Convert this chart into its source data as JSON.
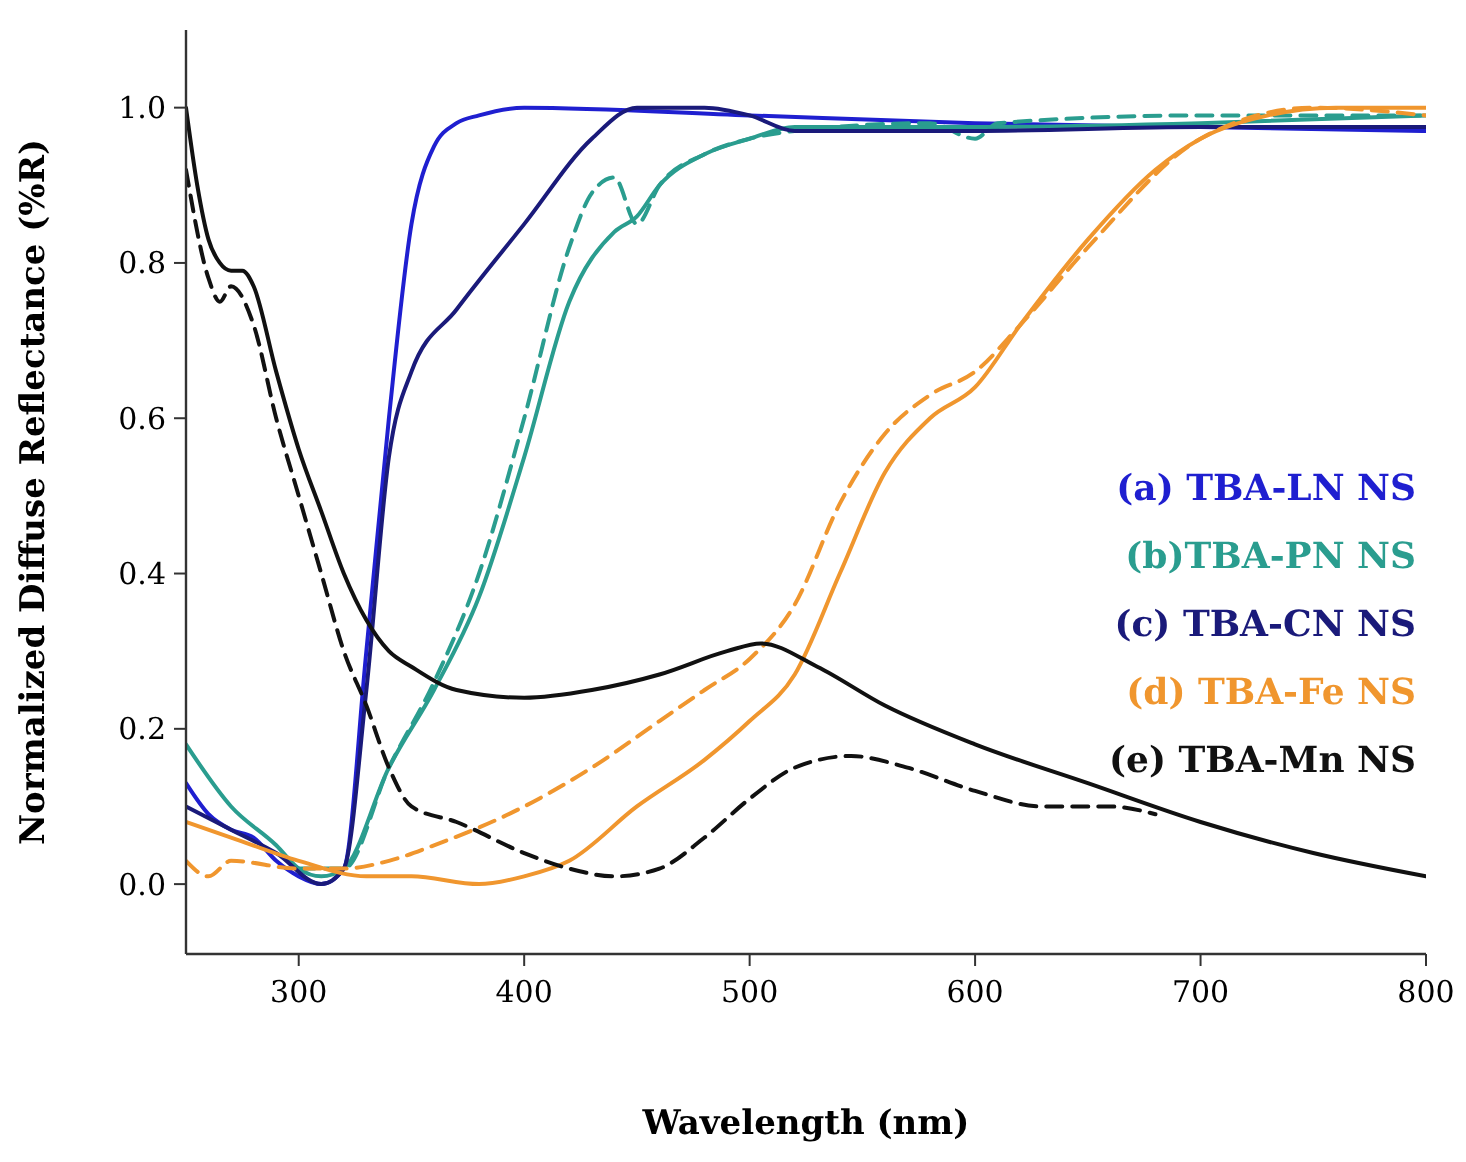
{
  "chart_data": {
    "type": "line",
    "xlabel": "Wavelength (nm)",
    "ylabel": "Normalized Diffuse Reflectance (%R)",
    "xlim": [
      250,
      800
    ],
    "ylim": [
      -0.09,
      1.1
    ],
    "xticks": [
      300,
      400,
      500,
      600,
      700,
      800
    ],
    "yticks": [
      {
        "value": 0,
        "label": "0.0"
      },
      0.2,
      0.4,
      0.6,
      0.8,
      {
        "value": 1,
        "label": "1.0"
      }
    ],
    "grid": false,
    "legend": "right",
    "marker": "none",
    "series": [
      {
        "name": "(a) TBA-LN NS",
        "color": "#1f1fd0",
        "line_style": "solid",
        "x": [
          250,
          260,
          270,
          280,
          290,
          300,
          310,
          320,
          330,
          340,
          350,
          360,
          370,
          380,
          400,
          500,
          600,
          700,
          800
        ],
        "values": [
          0.13,
          0.09,
          0.07,
          0.06,
          0.03,
          0.01,
          0.0,
          0.02,
          0.3,
          0.6,
          0.85,
          0.95,
          0.98,
          0.99,
          1.0,
          0.99,
          0.98,
          0.975,
          0.97
        ]
      },
      {
        "name": "(b)TBA-PN NS",
        "color": "#2a9d8f",
        "line_style": "solid",
        "x": [
          250,
          270,
          290,
          300,
          310,
          320,
          340,
          360,
          380,
          400,
          420,
          440,
          450,
          460,
          480,
          500,
          520,
          600,
          700,
          800
        ],
        "values": [
          0.18,
          0.1,
          0.05,
          0.02,
          0.01,
          0.02,
          0.15,
          0.25,
          0.37,
          0.55,
          0.75,
          0.84,
          0.86,
          0.9,
          0.94,
          0.96,
          0.975,
          0.975,
          0.98,
          0.99
        ]
      },
      {
        "color": "#2a9d8f",
        "line_style": "dashed",
        "x": [
          300,
          320,
          340,
          360,
          380,
          400,
          420,
          430,
          440,
          450,
          460,
          480,
          500,
          520,
          580,
          600,
          610,
          700,
          800
        ],
        "values": [
          0.02,
          0.02,
          0.15,
          0.26,
          0.4,
          0.6,
          0.82,
          0.89,
          0.91,
          0.85,
          0.9,
          0.94,
          0.96,
          0.97,
          0.98,
          0.96,
          0.98,
          0.99,
          0.99
        ]
      },
      {
        "name": "(c) TBA-CN NS",
        "color": "#1a1a7a",
        "line_style": "solid",
        "x": [
          250,
          270,
          290,
          310,
          320,
          330,
          340,
          350,
          370,
          400,
          430,
          450,
          480,
          500,
          520,
          600,
          700,
          800
        ],
        "values": [
          0.1,
          0.07,
          0.04,
          0.0,
          0.02,
          0.25,
          0.55,
          0.66,
          0.74,
          0.85,
          0.96,
          1.0,
          1.0,
          0.99,
          0.97,
          0.97,
          0.975,
          0.975
        ]
      },
      {
        "name": "(d) TBA-Fe NS",
        "color": "#f0962e",
        "line_style": "solid",
        "x": [
          250,
          270,
          300,
          330,
          350,
          380,
          400,
          420,
          450,
          480,
          500,
          520,
          540,
          560,
          580,
          600,
          620,
          650,
          680,
          700,
          730,
          760,
          800
        ],
        "values": [
          0.08,
          0.06,
          0.03,
          0.01,
          0.01,
          0.0,
          0.01,
          0.03,
          0.1,
          0.16,
          0.21,
          0.27,
          0.4,
          0.53,
          0.6,
          0.64,
          0.72,
          0.83,
          0.92,
          0.96,
          0.99,
          1.0,
          1.0
        ]
      },
      {
        "color": "#f0962e",
        "line_style": "dashed",
        "x": [
          250,
          260,
          270,
          300,
          320,
          340,
          360,
          400,
          430,
          460,
          480,
          500,
          520,
          540,
          560,
          580,
          600,
          620,
          650,
          700,
          750,
          800
        ],
        "values": [
          0.03,
          0.01,
          0.03,
          0.02,
          0.02,
          0.03,
          0.05,
          0.1,
          0.15,
          0.21,
          0.25,
          0.29,
          0.36,
          0.49,
          0.58,
          0.63,
          0.66,
          0.72,
          0.82,
          0.96,
          1.0,
          0.99
        ]
      },
      {
        "name": "(e) TBA-Mn NS",
        "color": "#111111",
        "line_style": "solid",
        "x": [
          250,
          255,
          260,
          265,
          270,
          275,
          280,
          290,
          300,
          310,
          320,
          330,
          340,
          350,
          370,
          400,
          430,
          460,
          490,
          505,
          530,
          560,
          600,
          650,
          700,
          750,
          800
        ],
        "values": [
          1.0,
          0.9,
          0.83,
          0.8,
          0.79,
          0.79,
          0.77,
          0.66,
          0.56,
          0.48,
          0.4,
          0.34,
          0.3,
          0.28,
          0.25,
          0.24,
          0.25,
          0.27,
          0.3,
          0.31,
          0.28,
          0.23,
          0.18,
          0.13,
          0.08,
          0.04,
          0.01
        ]
      },
      {
        "color": "#111111",
        "line_style": "dashed",
        "x": [
          250,
          260,
          265,
          270,
          280,
          290,
          300,
          310,
          320,
          330,
          340,
          350,
          370,
          400,
          420,
          440,
          460,
          480,
          500,
          520,
          545,
          570,
          600,
          630,
          660,
          680
        ],
        "values": [
          0.92,
          0.78,
          0.75,
          0.77,
          0.72,
          0.6,
          0.5,
          0.4,
          0.3,
          0.23,
          0.15,
          0.1,
          0.08,
          0.04,
          0.02,
          0.01,
          0.02,
          0.06,
          0.11,
          0.15,
          0.165,
          0.15,
          0.12,
          0.1,
          0.1,
          0.09
        ]
      }
    ]
  }
}
